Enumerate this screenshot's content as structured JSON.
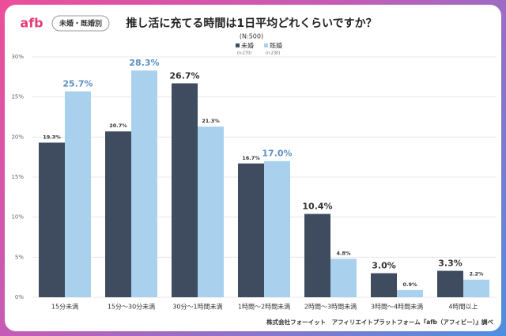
{
  "chart_data": {
    "type": "bar",
    "logo": "afb",
    "tag": "未婚・既婚別",
    "title": "推し活に充てる時間は1日平均どれくらいですか？",
    "subtitle": "(N:500)",
    "source": "株式会社フォーイット　アフィリエイトプラットフォーム『afb（アフィビー）』調べ",
    "categories": [
      "15分未満",
      "15分～30分未満",
      "30分～1時間未満",
      "1時間～2時間未満",
      "2時間～3時間未満",
      "3時間～4時間未満",
      "4時間以上"
    ],
    "series": [
      {
        "name": "未婚",
        "sample": "(n:270)",
        "color": "#3f4b5e",
        "label_color": "#333333",
        "values": [
          19.3,
          20.7,
          26.7,
          16.7,
          10.4,
          3.0,
          3.3
        ],
        "value_labels": [
          "19.3%",
          "20.7%",
          "26.7%",
          "16.7%",
          "10.4%",
          "3.0%",
          "3.3%"
        ]
      },
      {
        "name": "既婚",
        "sample": "(n:230)",
        "color": "#a9d1ee",
        "label_color": "#5a90c4",
        "values": [
          25.7,
          28.3,
          21.3,
          17.0,
          4.8,
          0.9,
          2.2
        ],
        "value_labels": [
          "25.7%",
          "28.3%",
          "21.3%",
          "17.0%",
          "4.8%",
          "0.9%",
          "2.2%"
        ]
      }
    ],
    "ylim": [
      0,
      30
    ],
    "yticks": [
      {
        "value": 0,
        "label": "0%"
      },
      {
        "value": 5,
        "label": "5%"
      },
      {
        "value": 10,
        "label": "10%"
      },
      {
        "value": 15,
        "label": "15%"
      },
      {
        "value": 20,
        "label": "20%"
      },
      {
        "value": 25,
        "label": "25%"
      },
      {
        "value": 30,
        "label": "30%"
      }
    ],
    "grid": true
  }
}
